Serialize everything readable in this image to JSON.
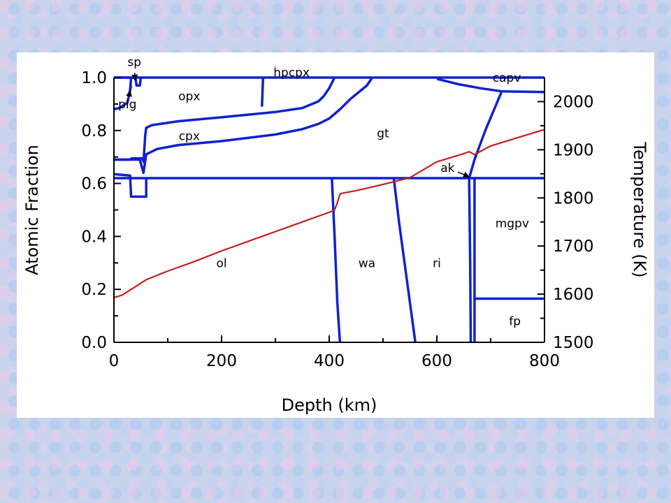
{
  "chart_data": {
    "type": "area",
    "title": "",
    "xlabel": "Depth (km)",
    "ylabel": "Atomic Fraction",
    "y2label": "Temperature (K)",
    "xlim": [
      0,
      800
    ],
    "ylim": [
      0,
      1
    ],
    "y2lim": [
      1500,
      2050
    ],
    "x_ticks": [
      "0",
      "200",
      "400",
      "600",
      "800"
    ],
    "y_ticks": [
      "0.0",
      "0.2",
      "0.4",
      "0.6",
      "0.8",
      "1.0"
    ],
    "y2_ticks": [
      "1500",
      "1600",
      "1700",
      "1800",
      "1900",
      "2000"
    ],
    "grid": false,
    "colors": {
      "boundaries": "#1020d0",
      "temperature": "#c81e1e"
    },
    "phase_boundaries": [
      {
        "id": "ol-gt",
        "x": [
          0,
          60,
          60,
          800
        ],
        "y": [
          0.62,
          0.62,
          0.62,
          0.62
        ]
      },
      {
        "id": "plg-sp-ol",
        "x": [
          0,
          30,
          32,
          60,
          60
        ],
        "y": [
          0.635,
          0.63,
          0.55,
          0.55,
          0.62
        ]
      },
      {
        "id": "plg-lower",
        "x": [
          0,
          30,
          33,
          52,
          56,
          58
        ],
        "y": [
          0.69,
          0.69,
          0.695,
          0.695,
          0.68,
          0.7
        ]
      },
      {
        "id": "cpx-gt",
        "x": [
          0,
          48,
          55,
          60,
          80,
          120,
          200,
          300,
          350,
          380,
          400,
          420,
          440,
          470,
          480
        ],
        "y": [
          0.69,
          0.69,
          0.64,
          0.71,
          0.73,
          0.745,
          0.76,
          0.785,
          0.805,
          0.825,
          0.845,
          0.88,
          0.92,
          0.97,
          1.0
        ]
      },
      {
        "id": "opx-cpx",
        "x": [
          55,
          58,
          60,
          70,
          120,
          200,
          300,
          350,
          380,
          390,
          400,
          410
        ],
        "y": [
          0.68,
          0.78,
          0.81,
          0.82,
          0.835,
          0.85,
          0.87,
          0.885,
          0.91,
          0.93,
          0.96,
          1.0
        ]
      },
      {
        "id": "plg-opx",
        "x": [
          0,
          10,
          25,
          32
        ],
        "y": [
          0.88,
          0.885,
          0.905,
          0.97
        ]
      },
      {
        "id": "plg-top",
        "x": [
          0,
          30
        ],
        "y": [
          1.0,
          1.0
        ]
      },
      {
        "id": "sp-left",
        "x": [
          30,
          32,
          35
        ],
        "y": [
          0.95,
          1.0,
          1.0
        ]
      },
      {
        "id": "sp-right",
        "x": [
          40,
          42,
          48,
          50
        ],
        "y": [
          1.0,
          0.97,
          0.97,
          1.0
        ]
      },
      {
        "id": "opx-hpcpx",
        "x": [
          275,
          277
        ],
        "y": [
          0.89,
          1.0
        ]
      },
      {
        "id": "gt-capv",
        "x": [
          600,
          640,
          680,
          720,
          800
        ],
        "y": [
          0.995,
          0.975,
          0.96,
          0.948,
          0.945
        ]
      },
      {
        "id": "gt-mgpv",
        "x": [
          660,
          670,
          690,
          720
        ],
        "y": [
          0.62,
          0.69,
          0.8,
          0.945
        ]
      },
      {
        "id": "ol-wa",
        "x": [
          405,
          410,
          415,
          420
        ],
        "y": [
          0.62,
          0.4,
          0.15,
          0.0
        ]
      },
      {
        "id": "wa-ri",
        "x": [
          520,
          530,
          540,
          550,
          560
        ],
        "y": [
          0.62,
          0.45,
          0.3,
          0.15,
          0.0
        ]
      },
      {
        "id": "ri-mgpv",
        "x": [
          660,
          662,
          663
        ],
        "y": [
          0.62,
          0.3,
          0.0
        ]
      },
      {
        "id": "mgpv-fp",
        "x": [
          670,
          800
        ],
        "y": [
          0.165,
          0.165
        ]
      },
      {
        "id": "mgpv-left",
        "x": [
          670,
          670
        ],
        "y": [
          0.0,
          0.62
        ]
      },
      {
        "id": "top",
        "x": [
          0,
          800
        ],
        "y": [
          1.0,
          1.0
        ]
      }
    ],
    "temperature_profile": {
      "name": "",
      "x": [
        0,
        15,
        25,
        35,
        60,
        100,
        150,
        200,
        250,
        300,
        350,
        400,
        410,
        415,
        420,
        425,
        450,
        500,
        550,
        600,
        650,
        660,
        670,
        680,
        700,
        750,
        800
      ],
      "y2": [
        1593,
        1598,
        1605,
        1612,
        1630,
        1648,
        1668,
        1690,
        1710,
        1730,
        1750,
        1770,
        1775,
        1790,
        1808,
        1810,
        1815,
        1828,
        1842,
        1875,
        1892,
        1896,
        1890,
        1896,
        1908,
        1925,
        1942
      ]
    },
    "annotations": [
      {
        "text": "plg",
        "x": 25,
        "y": 0.9,
        "arrow_to": [
          30,
          0.95
        ]
      },
      {
        "text": "sp",
        "x": 38,
        "y": 1.06,
        "arrow_to": [
          39,
          0.99
        ]
      },
      {
        "text": "ak",
        "x": 620,
        "y": 0.66,
        "arrow_to": [
          660,
          0.625
        ]
      }
    ],
    "region_labels": [
      {
        "text": "opx",
        "x": 140,
        "y": 0.93
      },
      {
        "text": "hpcpx",
        "x": 330,
        "y": 1.02
      },
      {
        "text": "cpx",
        "x": 140,
        "y": 0.78
      },
      {
        "text": "gt",
        "x": 500,
        "y": 0.79
      },
      {
        "text": "capv",
        "x": 730,
        "y": 1.0
      },
      {
        "text": "mgpv",
        "x": 740,
        "y": 0.45
      },
      {
        "text": "ol",
        "x": 200,
        "y": 0.3
      },
      {
        "text": "wa",
        "x": 470,
        "y": 0.3
      },
      {
        "text": "ri",
        "x": 600,
        "y": 0.3
      },
      {
        "text": "fp",
        "x": 745,
        "y": 0.08
      }
    ]
  }
}
